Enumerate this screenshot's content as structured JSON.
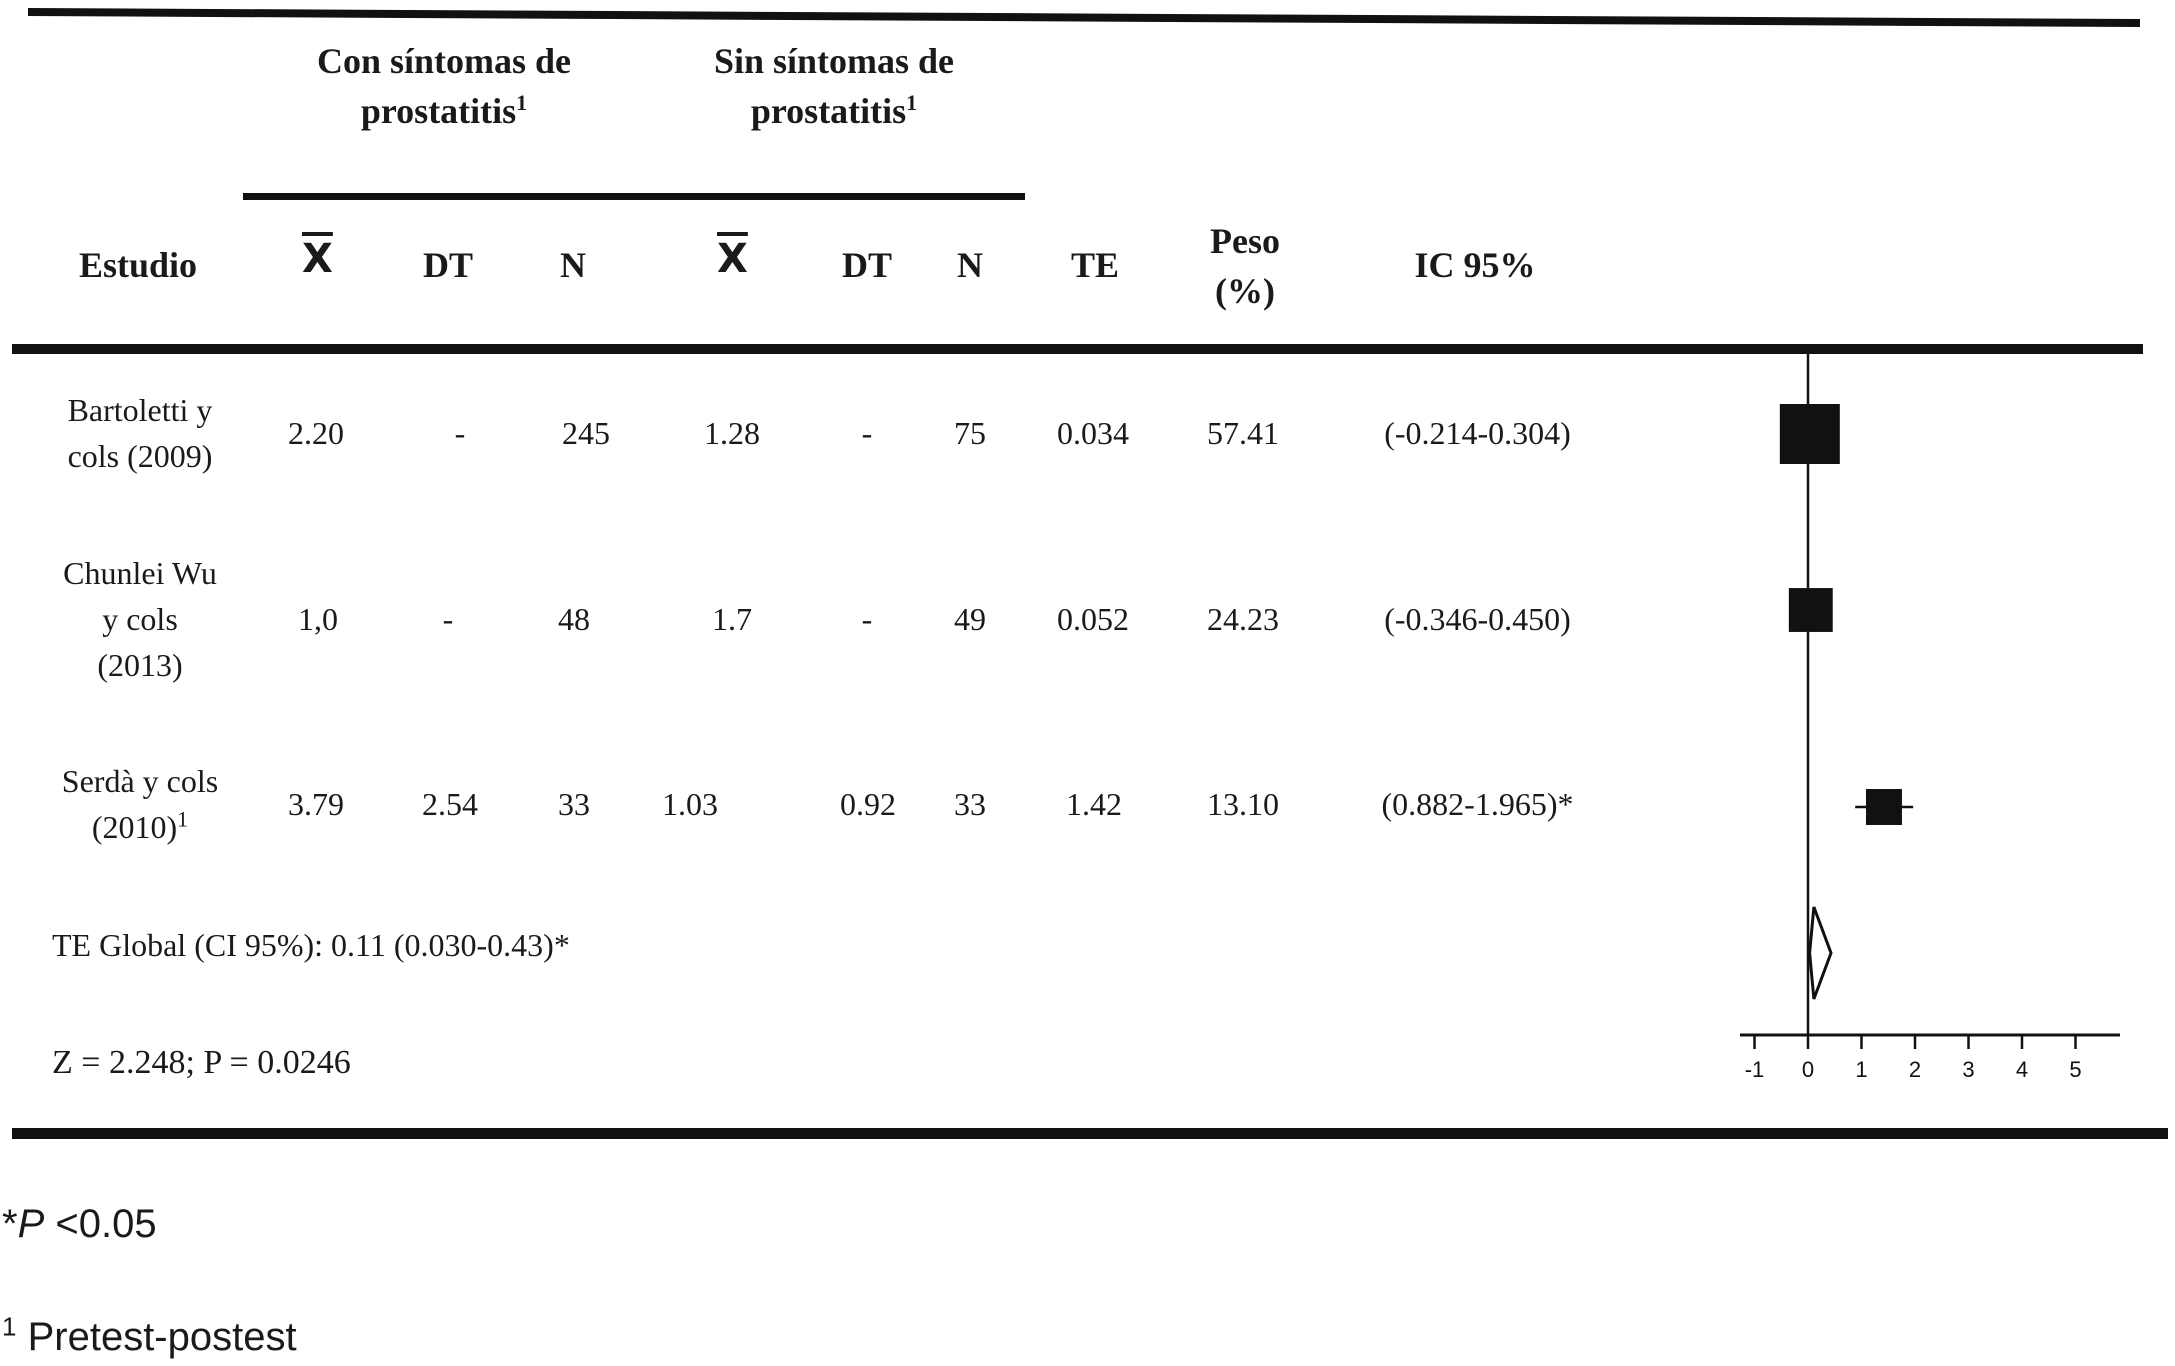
{
  "table": {
    "group1": {
      "line1": "Con síntomas de",
      "line2": "prostatitis",
      "sup": "1"
    },
    "group2": {
      "line1": "Sin síntomas de",
      "line2": "prostatitis",
      "sup": "1"
    },
    "headers": {
      "estudio": "Estudio",
      "mean1": "X",
      "dt1": "DT",
      "n1": "N",
      "mean2": "X",
      "dt2": "DT",
      "n2": "N",
      "te": "TE",
      "peso_line1": "Peso",
      "peso_line2": "(%)",
      "ic": "IC 95%"
    },
    "rows": [
      {
        "study_lines": [
          "Bartoletti y",
          "cols (2009)"
        ],
        "study_sup": "",
        "mean1": "2.20",
        "dt1": "-",
        "n1": "245",
        "mean2": "1.28",
        "dt2": "-",
        "n2": "75",
        "te": "0.034",
        "peso": "57.41",
        "ic": "(-0.214-0.304)"
      },
      {
        "study_lines": [
          "Chunlei Wu",
          "y cols",
          "(2013)"
        ],
        "study_sup": "",
        "mean1": "1,0",
        "dt1": "-",
        "n1": "48",
        "mean2": "1.7",
        "dt2": "-",
        "n2": "49",
        "te": "0.052",
        "peso": "24.23",
        "ic": "(-0.346-0.450)"
      },
      {
        "study_lines": [
          "Serdà y cols",
          "(2010)"
        ],
        "study_sup": "1",
        "mean1": "3.79",
        "dt1": "2.54",
        "n1": "33",
        "mean2": "1.03",
        "dt2": "0.92",
        "n2": "33",
        "te": "1.42",
        "peso": "13.10",
        "ic": "(0.882-1.965)*"
      }
    ],
    "global": "TE Global (CI 95%): 0.11 (0.030-0.43)*",
    "ztest": "Z = 2.248; P = 0.0246"
  },
  "footnotes": {
    "star": "*",
    "p_italic": "P",
    "p_rest": " <0.05",
    "sup1": "1",
    "pretest": " Pretest-postest"
  },
  "chart_data": {
    "type": "forest",
    "x_ticks": [
      -1,
      0,
      1,
      2,
      3,
      4,
      5
    ],
    "studies": [
      {
        "name": "Bartoletti y cols (2009)",
        "estimate": 0.034,
        "ci_low": -0.214,
        "ci_high": 0.304,
        "weight": 57.41
      },
      {
        "name": "Chunlei Wu y cols (2013)",
        "estimate": 0.052,
        "ci_low": -0.346,
        "ci_high": 0.45,
        "weight": 24.23
      },
      {
        "name": "Serdà y cols (2010)",
        "estimate": 1.42,
        "ci_low": 0.882,
        "ci_high": 1.965,
        "weight": 13.1
      }
    ],
    "overall": {
      "estimate": 0.11,
      "ci_low": 0.03,
      "ci_high": 0.43
    },
    "colors": {
      "ink": "#111111"
    }
  }
}
